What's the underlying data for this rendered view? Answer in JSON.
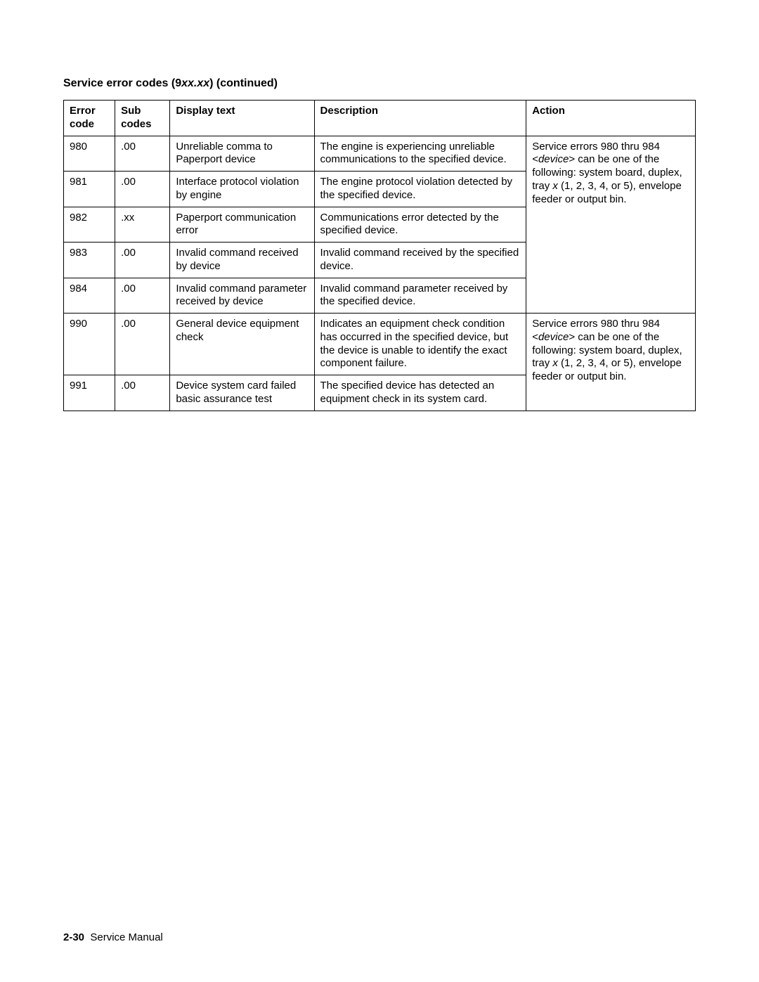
{
  "title_prefix": "Service error codes (9",
  "title_italic": "xx.xx",
  "title_suffix": ") (continued)",
  "headers": {
    "c1": "Error code",
    "c2": "Sub codes",
    "c3": "Display text",
    "c4": "Description",
    "c5": "Action"
  },
  "rows": [
    {
      "code": "980",
      "sub": ".00",
      "disp": "Unreliable comma to Paperport device",
      "desc": "The engine is experiencing unreliable communications to the specified device."
    },
    {
      "code": "981",
      "sub": ".00",
      "disp": "Interface protocol violation by engine",
      "desc": "The engine protocol violation detected by the specified device."
    },
    {
      "code": "982",
      "sub": ".xx",
      "disp": "Paperport communication error",
      "desc": "Communications error detected by the specified device."
    },
    {
      "code": "983",
      "sub": ".00",
      "disp": "Invalid command received by device",
      "desc": "Invalid command received by the specified device."
    },
    {
      "code": "984",
      "sub": ".00",
      "disp": "Invalid command parameter received by device",
      "desc": "Invalid command parameter received by the specified device."
    },
    {
      "code": "990",
      "sub": ".00",
      "disp": "General device equipment check",
      "desc": "Indicates an equipment check condition has occurred in the specified device, but the device is unable to identify the exact component failure."
    },
    {
      "code": "991",
      "sub": ".00",
      "disp": "Device system card failed basic assurance test",
      "desc": "The specified device has detected an equipment check in its system card."
    }
  ],
  "action1": {
    "p1": "Service errors 980 thru 984 <",
    "dev": "device",
    "p2": "> can be one of the following: system board, duplex, tray ",
    "x": "x",
    "p3": " (1, 2, 3, 4, or 5), envelope feeder or output bin."
  },
  "action2": {
    "p1": "Service errors 980 thru 984 <",
    "dev": "device",
    "p2": "> can be one of the following: system board, duplex, tray ",
    "x": "x",
    "p3": " (1, 2, 3, 4, or 5), envelope feeder or output bin."
  },
  "footer": {
    "page": "2-30",
    "label": "Service Manual"
  }
}
